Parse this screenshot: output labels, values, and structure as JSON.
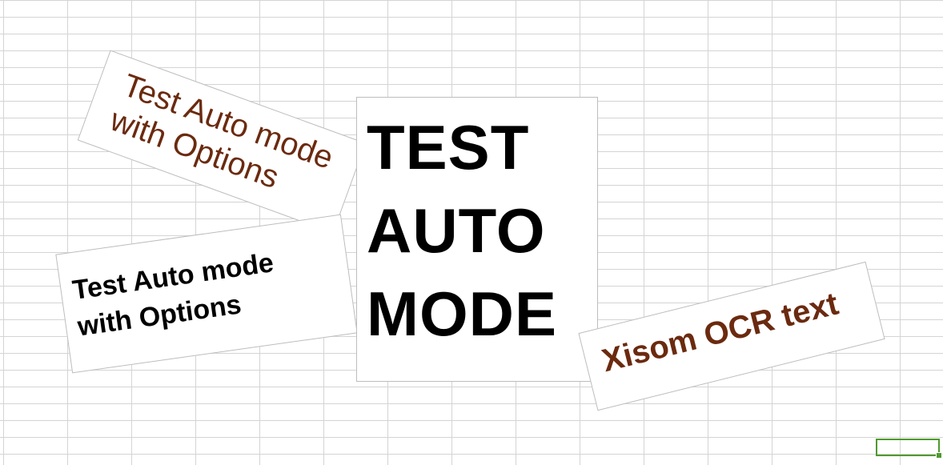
{
  "sheet": {
    "grid_color": "#d4d4d4",
    "selection_color": "#4f9a2f"
  },
  "text_boxes": [
    {
      "lines": [
        "Test Auto mode",
        "with Options"
      ],
      "color": "#6b2a0f",
      "style": "regular",
      "rotation_deg": 20
    },
    {
      "lines": [
        "Test Auto mode",
        "with Options"
      ],
      "color": "#000000",
      "style": "bold",
      "rotation_deg": -8
    },
    {
      "lines": [
        "TEST",
        "AUTO",
        "MODE"
      ],
      "color": "#000000",
      "style": "bold",
      "rotation_deg": 0
    },
    {
      "lines": [
        "Xisom OCR text"
      ],
      "color": "#6b2a0f",
      "style": "bold",
      "rotation_deg": -14
    }
  ]
}
